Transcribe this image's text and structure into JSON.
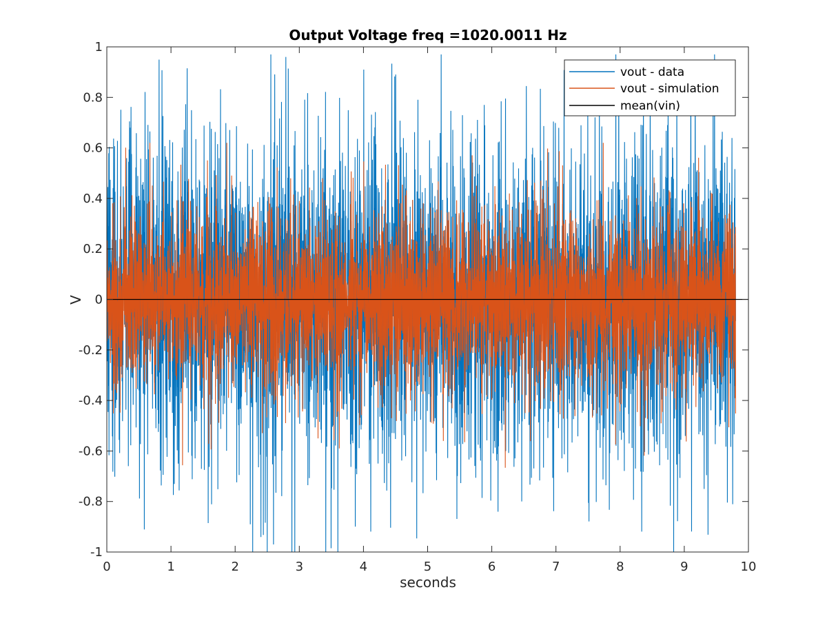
{
  "chart_data": {
    "type": "line",
    "title": "Output Voltage freq =1020.0011 Hz",
    "xlabel": "seconds",
    "ylabel": "V",
    "xlim": [
      0,
      10
    ],
    "ylim": [
      -1,
      1
    ],
    "xticks": [
      0,
      1,
      2,
      3,
      4,
      5,
      6,
      7,
      8,
      9,
      10
    ],
    "xtick_labels": [
      "0",
      "1",
      "2",
      "3",
      "4",
      "5",
      "6",
      "7",
      "8",
      "9",
      "10"
    ],
    "yticks": [
      -1,
      -0.8,
      -0.6,
      -0.4,
      -0.2,
      0,
      0.2,
      0.4,
      0.6,
      0.8,
      1
    ],
    "ytick_labels": [
      "-1",
      "-0.8",
      "-0.6",
      "-0.4",
      "-0.2",
      "0",
      "0.2",
      "0.4",
      "0.6",
      "0.8",
      "1"
    ],
    "grid": false,
    "legend_position": "top-right",
    "series": [
      {
        "name": "vout - data",
        "color": "#0072bd",
        "x_range": [
          0,
          9.8
        ],
        "approx_envelope": {
          "typical": [
            -0.5,
            0.5
          ],
          "extremes": [
            -1.0,
            0.97
          ]
        }
      },
      {
        "name": "vout - simulation",
        "color": "#d95319",
        "x_range": [
          0,
          9.8
        ],
        "approx_envelope": {
          "typical": [
            -0.3,
            0.3
          ],
          "extremes": [
            -0.8,
            0.62
          ]
        }
      },
      {
        "name": "mean(vin)",
        "color": "#000000",
        "x": [
          0,
          10
        ],
        "values": [
          0,
          0
        ]
      }
    ]
  }
}
